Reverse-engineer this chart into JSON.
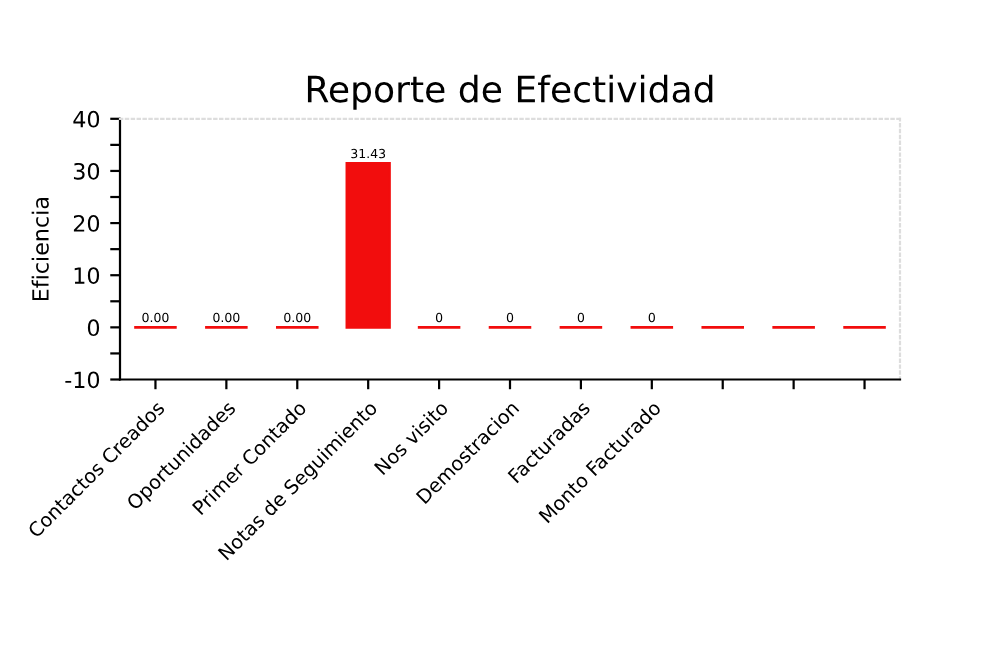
{
  "chart_data": {
    "type": "bar",
    "title": "Reporte de Efectividad",
    "ylabel": "Eficiencia",
    "categories": [
      "Contactos Creados",
      "Oportunidades",
      "Primer Contado",
      "Notas de Seguimiento",
      "Nos visito",
      "Demostracion",
      "Facturadas",
      "Monto Facturado",
      null,
      null,
      null
    ],
    "values": [
      0,
      0,
      0,
      31.43,
      0,
      0,
      0,
      0,
      0,
      0,
      0
    ],
    "color": "#f20d0d",
    "value_labels": [
      "0.00",
      "0.00",
      "0.00",
      "31.43",
      "0",
      "0",
      "0",
      "0",
      null,
      null,
      null
    ],
    "ylim": [
      -10,
      40
    ],
    "yticks": [
      -10,
      {
        "value": -5,
        "label": null
      },
      0,
      {
        "value": 5,
        "label": null
      },
      10,
      {
        "value": 15,
        "label": null
      },
      20,
      {
        "value": 25,
        "label": null
      },
      30,
      {
        "value": 35,
        "label": null
      },
      40
    ],
    "grid": false
  }
}
